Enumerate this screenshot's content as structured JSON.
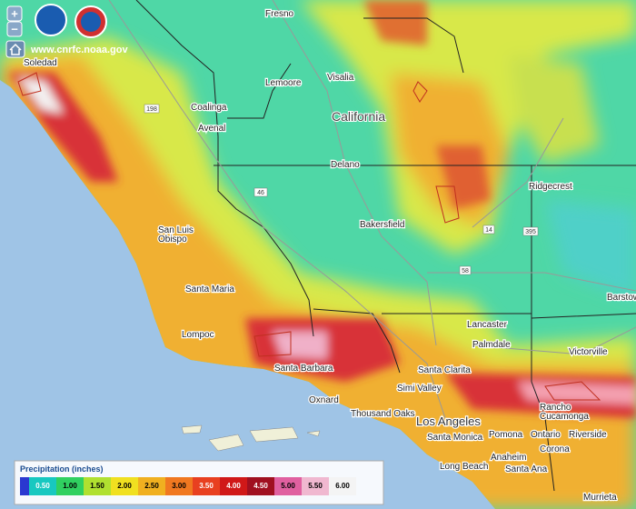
{
  "header": {
    "url": "www.cnrfc.noaa.gov",
    "zoom_in": "+",
    "zoom_out": "−"
  },
  "map": {
    "region_label": "California",
    "cities": [
      "Fresno",
      "Soledad",
      "Visalia",
      "Lemoore",
      "Coalinga",
      "Avenal",
      "Delano",
      "Ridgecrest",
      "San Luis",
      "Obispo",
      "Bakersfield",
      "Santa Maria",
      "Barstow",
      "Lancaster",
      "Palmdale",
      "Victorville",
      "Lompoc",
      "Santa Clarita",
      "Santa Barbara",
      "Oxnard",
      "Simi Valley",
      "Thousand Oaks",
      "Los Angeles",
      "Rancho",
      "Cucamonga",
      "Pomona",
      "Ontario",
      "Riverside",
      "Santa Monica",
      "Anaheim",
      "Corona",
      "Long Beach",
      "Santa Ana",
      "Murrieta"
    ],
    "highways": [
      "198",
      "46",
      "14",
      "395",
      "58"
    ]
  },
  "legend": {
    "title": "Precipitation (inches)",
    "labels": [
      "0.50",
      "1.00",
      "1.50",
      "2.00",
      "2.50",
      "3.00",
      "3.50",
      "4.00",
      "4.50",
      "5.00",
      "5.50",
      "6.00"
    ]
  }
}
